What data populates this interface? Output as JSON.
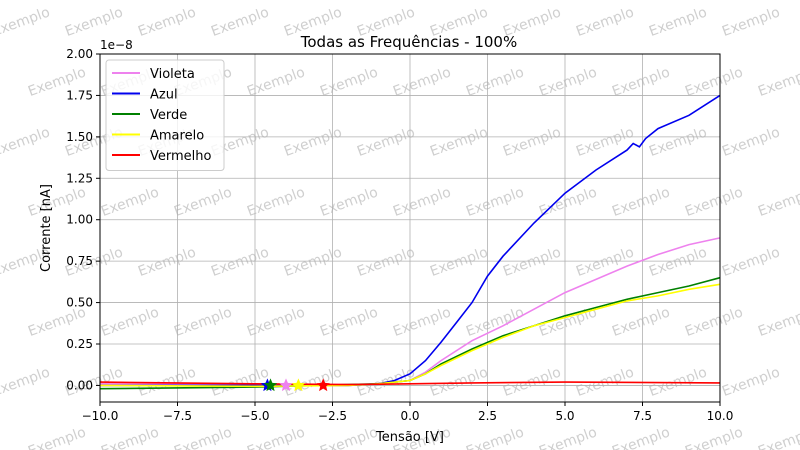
{
  "watermark": "Exemplo",
  "chart_data": {
    "type": "line",
    "title": "Todas as Frequências - 100%",
    "xlabel": "Tensão [V]",
    "ylabel": "Corrente [nA]",
    "y_offset_text": "1e−8",
    "xlim": [
      -10,
      10
    ],
    "ylim": [
      -0.1,
      2.0
    ],
    "x_ticks": [
      -10,
      -7.5,
      -5,
      -2.5,
      0,
      2.5,
      5,
      7.5,
      10
    ],
    "x_tick_labels": [
      "−10.0",
      "−7.5",
      "−5.0",
      "−2.5",
      "0.0",
      "2.5",
      "5.0",
      "7.5",
      "10.0"
    ],
    "y_ticks": [
      0,
      0.25,
      0.5,
      0.75,
      1.0,
      1.25,
      1.5,
      1.75,
      2.0
    ],
    "y_tick_labels": [
      "0.00",
      "0.25",
      "0.50",
      "0.75",
      "1.00",
      "1.25",
      "1.50",
      "1.75",
      "2.00"
    ],
    "grid": true,
    "legend_position": "top-left",
    "series": [
      {
        "name": "Violeta",
        "color": "#ee82ee",
        "x": [
          -10,
          -5,
          -2,
          -1,
          0,
          0.5,
          1,
          2,
          3,
          4,
          5,
          6,
          7,
          8,
          9,
          10
        ],
        "y": [
          0.01,
          0.005,
          0.005,
          0.01,
          0.03,
          0.08,
          0.15,
          0.27,
          0.36,
          0.46,
          0.56,
          0.64,
          0.72,
          0.79,
          0.85,
          0.89
        ],
        "marker": {
          "x": -4.0,
          "y": 0.0,
          "symbol": "star"
        }
      },
      {
        "name": "Azul",
        "color": "#0000ee",
        "x": [
          -10,
          -5,
          -2,
          -1,
          -0.5,
          0,
          0.5,
          1,
          1.5,
          2,
          2.5,
          3,
          4,
          5,
          6,
          7,
          7.2,
          7.4,
          7.6,
          8,
          9,
          10
        ],
        "y": [
          0.0,
          0.0,
          0.0,
          0.01,
          0.03,
          0.07,
          0.15,
          0.26,
          0.38,
          0.5,
          0.66,
          0.78,
          0.98,
          1.16,
          1.3,
          1.42,
          1.46,
          1.44,
          1.49,
          1.55,
          1.63,
          1.75
        ],
        "marker": {
          "x": -4.6,
          "y": 0.0,
          "symbol": "star"
        }
      },
      {
        "name": "Verde",
        "color": "#008000",
        "x": [
          -10,
          -5,
          -2,
          -1,
          0,
          0.5,
          1,
          2,
          3,
          4,
          5,
          6,
          7,
          8,
          9,
          10
        ],
        "y": [
          -0.02,
          -0.01,
          0.005,
          0.01,
          0.03,
          0.07,
          0.13,
          0.22,
          0.3,
          0.36,
          0.42,
          0.47,
          0.52,
          0.56,
          0.6,
          0.65
        ],
        "marker": {
          "x": -4.5,
          "y": 0.0,
          "symbol": "star"
        }
      },
      {
        "name": "Amarelo",
        "color": "#ffff00",
        "x": [
          -10,
          -5,
          -2,
          -1,
          0,
          0.5,
          1,
          2,
          3,
          4,
          5,
          6,
          7,
          8,
          9,
          10
        ],
        "y": [
          0.0,
          -0.005,
          0.0,
          0.01,
          0.03,
          0.07,
          0.12,
          0.21,
          0.29,
          0.36,
          0.41,
          0.46,
          0.51,
          0.54,
          0.58,
          0.61
        ],
        "marker": {
          "x": -3.6,
          "y": 0.0,
          "symbol": "star"
        }
      },
      {
        "name": "Vermelho",
        "color": "#ff0000",
        "x": [
          -10,
          -5,
          -2,
          0,
          2,
          5,
          10
        ],
        "y": [
          0.02,
          0.01,
          0.005,
          0.01,
          0.015,
          0.02,
          0.015
        ],
        "marker": {
          "x": -2.8,
          "y": 0.0,
          "symbol": "star"
        }
      }
    ]
  }
}
